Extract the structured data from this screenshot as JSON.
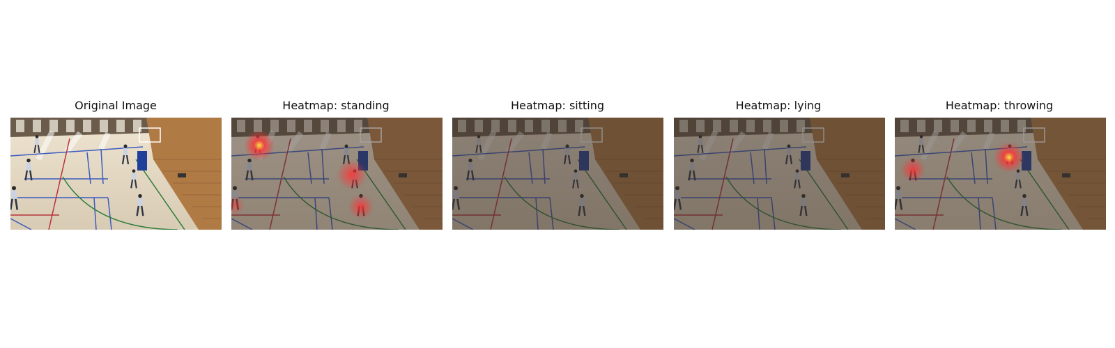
{
  "figure": {
    "panels": [
      {
        "id": "original",
        "title": "Original Image",
        "dim": 0,
        "hotspots": []
      },
      {
        "id": "standing",
        "title": "Heatmap: standing",
        "dim": 0.45,
        "hotspots": [
          {
            "kind": "hot",
            "label": "standing-region-1"
          },
          {
            "kind": "warm",
            "label": "standing-region-2"
          },
          {
            "kind": "warm",
            "label": "standing-region-3"
          },
          {
            "kind": "faint",
            "label": "standing-region-4"
          }
        ]
      },
      {
        "id": "sitting",
        "title": "Heatmap: sitting",
        "dim": 0.55,
        "hotspots": []
      },
      {
        "id": "lying",
        "title": "Heatmap: lying",
        "dim": 0.55,
        "hotspots": []
      },
      {
        "id": "throwing",
        "title": "Heatmap: throwing",
        "dim": 0.5,
        "hotspots": [
          {
            "kind": "hot",
            "label": "throwing-region-1"
          },
          {
            "kind": "warm",
            "label": "throwing-region-2"
          }
        ]
      }
    ]
  },
  "colors": {
    "floor": "#d8cbb4",
    "wall_right": "#b07a45",
    "back_wall": "#6b5b4a",
    "blue_line": "#3b5bbf",
    "red_line": "#b7333a",
    "green_line": "#2e7d3a",
    "dim_overlay": "#3a2f2a",
    "heat_hot": "#ffee44",
    "heat_warm": "#ff3333"
  }
}
